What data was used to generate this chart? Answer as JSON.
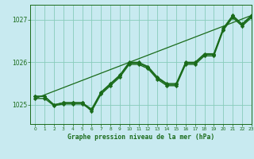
{
  "title": "Graphe pression niveau de la mer (hPa)",
  "bg_color": "#c8eaf0",
  "grid_color": "#88ccbb",
  "line_color": "#1a6b1a",
  "xlim": [
    -0.5,
    23
  ],
  "ylim": [
    1024.55,
    1027.35
  ],
  "yticks": [
    1025,
    1026,
    1027
  ],
  "xticks": [
    0,
    1,
    2,
    3,
    4,
    5,
    6,
    7,
    8,
    9,
    10,
    11,
    12,
    13,
    14,
    15,
    16,
    17,
    18,
    19,
    20,
    21,
    22,
    23
  ],
  "series": [
    {
      "x": [
        0,
        1,
        2,
        3,
        4,
        5,
        6,
        7,
        8,
        9,
        10,
        11,
        12,
        13,
        14,
        15,
        16,
        17,
        18,
        19,
        20,
        21,
        22,
        23
      ],
      "y": [
        1025.2,
        1025.2,
        1025.0,
        1025.05,
        1025.05,
        1025.05,
        1024.85,
        1025.25,
        1025.45,
        1025.65,
        1025.95,
        1025.95,
        1025.85,
        1025.6,
        1025.45,
        1025.45,
        1025.95,
        1025.95,
        1026.15,
        1026.15,
        1026.75,
        1027.05,
        1026.85,
        1027.05
      ],
      "marker": "D",
      "lw": 1.0,
      "ms": 2.2
    },
    {
      "x": [
        0,
        1,
        2,
        3,
        4,
        5,
        6,
        7,
        8,
        9,
        10,
        11,
        12,
        13,
        14,
        15,
        16,
        17,
        18,
        19,
        20,
        21,
        22,
        23
      ],
      "y": [
        1025.2,
        1025.2,
        1025.0,
        1025.05,
        1025.05,
        1025.05,
        1024.9,
        1025.3,
        1025.5,
        1025.7,
        1026.0,
        1026.0,
        1025.9,
        1025.65,
        1025.5,
        1025.5,
        1026.0,
        1026.0,
        1026.2,
        1026.2,
        1026.8,
        1027.1,
        1026.9,
        1027.1
      ],
      "marker": "D",
      "lw": 1.0,
      "ms": 2.2
    },
    {
      "x": [
        0,
        1,
        2,
        3,
        4,
        5,
        6,
        7,
        8,
        9,
        10,
        11,
        12,
        13,
        14,
        15,
        16,
        17,
        18,
        19,
        20,
        21,
        22,
        23
      ],
      "y": [
        1025.15,
        1025.15,
        1024.98,
        1025.02,
        1025.02,
        1025.02,
        1024.88,
        1025.28,
        1025.48,
        1025.68,
        1025.98,
        1025.98,
        1025.88,
        1025.63,
        1025.48,
        1025.48,
        1025.98,
        1025.98,
        1026.18,
        1026.18,
        1026.78,
        1027.08,
        1026.88,
        1027.08
      ],
      "marker": "D",
      "lw": 1.0,
      "ms": 2.2
    },
    {
      "x": [
        0,
        23
      ],
      "y": [
        1025.15,
        1027.1
      ],
      "marker": null,
      "lw": 0.9,
      "ms": 0,
      "linestyle": "-"
    }
  ]
}
